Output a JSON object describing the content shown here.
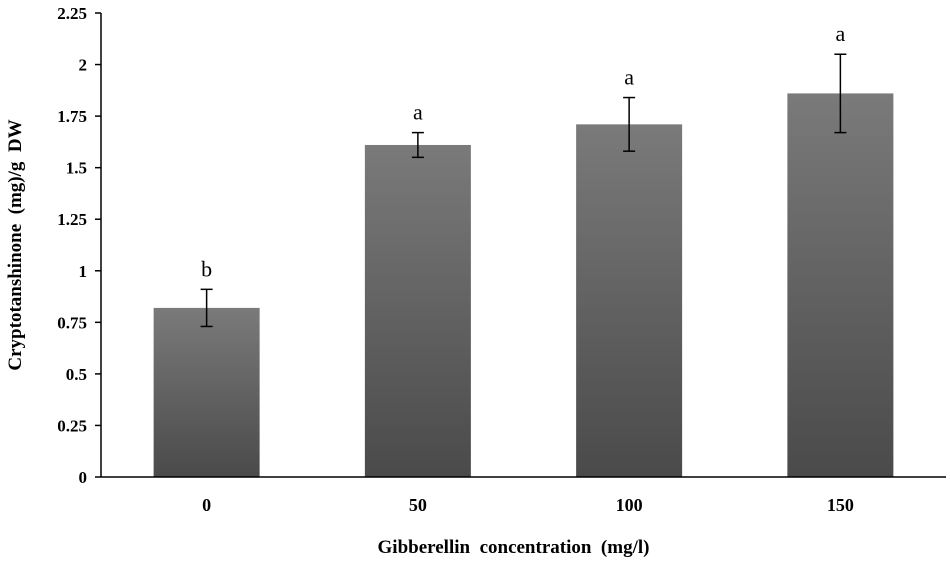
{
  "chart_data": {
    "type": "bar",
    "categories": [
      "0",
      "50",
      "100",
      "150"
    ],
    "values": [
      0.82,
      1.61,
      1.71,
      1.86
    ],
    "error": [
      0.09,
      0.06,
      0.13,
      0.19
    ],
    "significance": [
      "b",
      "a",
      "a",
      "a"
    ],
    "xlabel": "Gibberellin  concentration  (mg/l)",
    "ylabel": "Cryptotanshinone  (mg)/g  DW",
    "ylim": [
      0,
      2.25
    ],
    "yticks": [
      "0",
      "0.25",
      "0.5",
      "0.75",
      "1",
      "1.25",
      "1.5",
      "1.75",
      "2",
      "2.25"
    ],
    "grid": false,
    "bar_color_top": "#7a7a7a",
    "bar_color_bottom": "#4a4a4a"
  }
}
